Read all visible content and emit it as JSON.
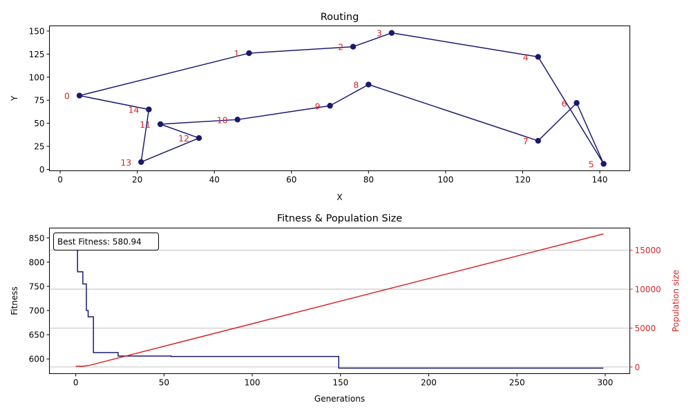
{
  "chart_data": [
    {
      "type": "line",
      "title": "Routing",
      "xlabel": "X",
      "ylabel": "Y",
      "xlim": [
        -2.8,
        147.8
      ],
      "ylim": [
        -1.5,
        155.6
      ],
      "xticks": [
        0,
        20,
        40,
        60,
        80,
        100,
        120,
        140
      ],
      "yticks": [
        0,
        25,
        50,
        75,
        100,
        125,
        150
      ],
      "grid": false,
      "route_color": "#191970",
      "label_color": "#d62728",
      "points": [
        {
          "label": "0",
          "x": 5,
          "y": 80
        },
        {
          "label": "1",
          "x": 49,
          "y": 126
        },
        {
          "label": "2",
          "x": 76,
          "y": 133
        },
        {
          "label": "3",
          "x": 86,
          "y": 148
        },
        {
          "label": "4",
          "x": 124,
          "y": 122
        },
        {
          "label": "5",
          "x": 141,
          "y": 6
        },
        {
          "label": "6",
          "x": 134,
          "y": 72
        },
        {
          "label": "7",
          "x": 124,
          "y": 31
        },
        {
          "label": "8",
          "x": 80,
          "y": 92
        },
        {
          "label": "9",
          "x": 70,
          "y": 69
        },
        {
          "label": "10",
          "x": 46,
          "y": 54
        },
        {
          "label": "11",
          "x": 26,
          "y": 49
        },
        {
          "label": "12",
          "x": 36,
          "y": 34
        },
        {
          "label": "13",
          "x": 21,
          "y": 8
        },
        {
          "label": "14",
          "x": 23,
          "y": 65
        }
      ],
      "route": [
        0,
        1,
        2,
        3,
        4,
        5,
        6,
        7,
        8,
        9,
        10,
        11,
        12,
        13,
        14,
        0
      ]
    },
    {
      "type": "line",
      "title": "Fitness & Population Size",
      "xlabel": "Generations",
      "ylabel": "Fitness",
      "ylabel_right": "Population size",
      "xlim": [
        -14.95,
        313.95
      ],
      "ylim": [
        569.6,
        870.4
      ],
      "ylim_right": [
        -850,
        17850
      ],
      "xticks": [
        0,
        50,
        100,
        150,
        200,
        250,
        300
      ],
      "yticks": [
        600,
        650,
        700,
        750,
        800,
        850
      ],
      "yticks_right": [
        0,
        5000,
        10000,
        15000
      ],
      "grid": "horizontal",
      "annotation": "Best Fitness: 580.94",
      "series": [
        {
          "name": "Fitness",
          "color": "#191970",
          "axis": "left",
          "step": true,
          "points": [
            [
              0,
              845
            ],
            [
              1,
              780
            ],
            [
              3,
              780
            ],
            [
              4,
              755
            ],
            [
              5,
              755
            ],
            [
              6,
              700
            ],
            [
              7,
              687
            ],
            [
              9,
              687
            ],
            [
              10,
              613
            ],
            [
              23,
              613
            ],
            [
              24,
              606
            ],
            [
              53,
              606
            ],
            [
              54,
              605
            ],
            [
              148,
              605
            ],
            [
              149,
              581
            ],
            [
              299,
              581
            ]
          ]
        },
        {
          "name": "Population size",
          "color": "#d62728",
          "axis": "right",
          "step": false,
          "points": [
            [
              0,
              100
            ],
            [
              4,
              100
            ],
            [
              8,
              230
            ],
            [
              299,
              17100
            ]
          ]
        }
      ]
    }
  ]
}
